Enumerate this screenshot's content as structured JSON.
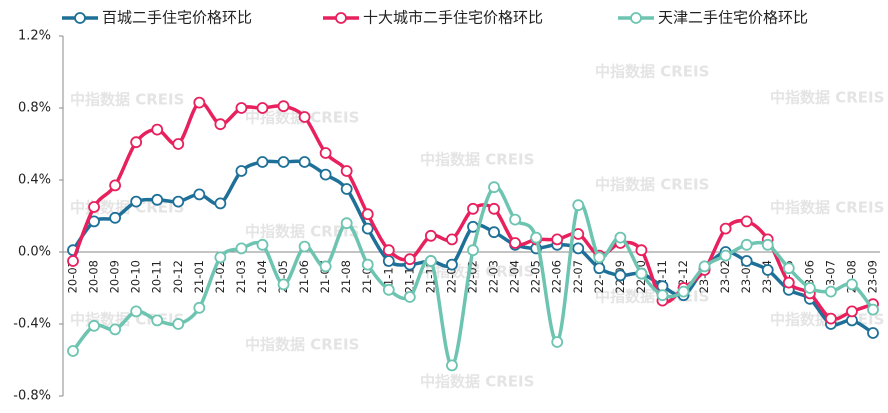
{
  "chart_data": {
    "type": "line",
    "watermark": "中指数据 CREIS",
    "categories": [
      "20-07",
      "20-08",
      "20-09",
      "20-10",
      "20-11",
      "20-12",
      "21-01",
      "21-02",
      "21-03",
      "21-04",
      "21-05",
      "21-06",
      "21-07",
      "21-08",
      "21-09",
      "21-10",
      "21-11",
      "21-12",
      "22-01",
      "22-02",
      "22-03",
      "22-04",
      "22-05",
      "22-06",
      "22-07",
      "22-08",
      "22-09",
      "22-10",
      "22-11",
      "22-12",
      "23-01",
      "23-02",
      "23-03",
      "23-04",
      "23-05",
      "23-06",
      "23-07",
      "23-08",
      "23-09"
    ],
    "series": [
      {
        "name": "百城二手住宅价格环比",
        "color": "#1f7098",
        "values": [
          0.01,
          0.17,
          0.19,
          0.28,
          0.29,
          0.28,
          0.32,
          0.27,
          0.45,
          0.5,
          0.5,
          0.5,
          0.43,
          0.35,
          0.13,
          -0.05,
          -0.07,
          -0.05,
          -0.07,
          0.14,
          0.11,
          0.04,
          0.02,
          0.04,
          0.02,
          -0.09,
          -0.13,
          -0.12,
          -0.19,
          -0.24,
          -0.09,
          0.0,
          -0.05,
          -0.1,
          -0.21,
          -0.26,
          -0.4,
          -0.38,
          -0.45
        ]
      },
      {
        "name": "十大城市二手住宅价格环比",
        "color": "#e8215e",
        "values": [
          -0.05,
          0.25,
          0.37,
          0.61,
          0.68,
          0.6,
          0.83,
          0.71,
          0.8,
          0.8,
          0.81,
          0.75,
          0.55,
          0.45,
          0.21,
          0.01,
          -0.04,
          0.09,
          0.07,
          0.24,
          0.24,
          0.05,
          0.07,
          0.07,
          0.1,
          -0.02,
          0.05,
          0.01,
          -0.27,
          -0.2,
          -0.1,
          0.13,
          0.17,
          0.07,
          -0.17,
          -0.23,
          -0.37,
          -0.33,
          -0.29
        ]
      },
      {
        "name": "天津二手住宅价格环比",
        "color": "#6cc4b1",
        "values": [
          -0.55,
          -0.41,
          -0.43,
          -0.33,
          -0.38,
          -0.4,
          -0.31,
          -0.03,
          0.02,
          0.04,
          -0.18,
          0.03,
          -0.08,
          0.16,
          -0.07,
          -0.21,
          -0.25,
          -0.05,
          -0.63,
          0.01,
          0.36,
          0.18,
          0.08,
          -0.5,
          0.26,
          -0.03,
          0.08,
          -0.12,
          -0.24,
          -0.22,
          -0.08,
          -0.02,
          0.04,
          0.04,
          -0.09,
          -0.2,
          -0.22,
          -0.18,
          -0.32
        ]
      }
    ],
    "ylim": [
      -0.8,
      1.2
    ],
    "yticks": [
      {
        "value": 1.2,
        "label": "1.2%"
      },
      {
        "value": 0.8,
        "label": "0.8%"
      },
      {
        "value": 0.4,
        "label": "0.4%"
      },
      {
        "value": 0,
        "label": "0.0%"
      },
      {
        "value": -0.4,
        "label": "-0.4%"
      },
      {
        "value": -0.8,
        "label": "-0.8%"
      }
    ],
    "legend": "top"
  }
}
